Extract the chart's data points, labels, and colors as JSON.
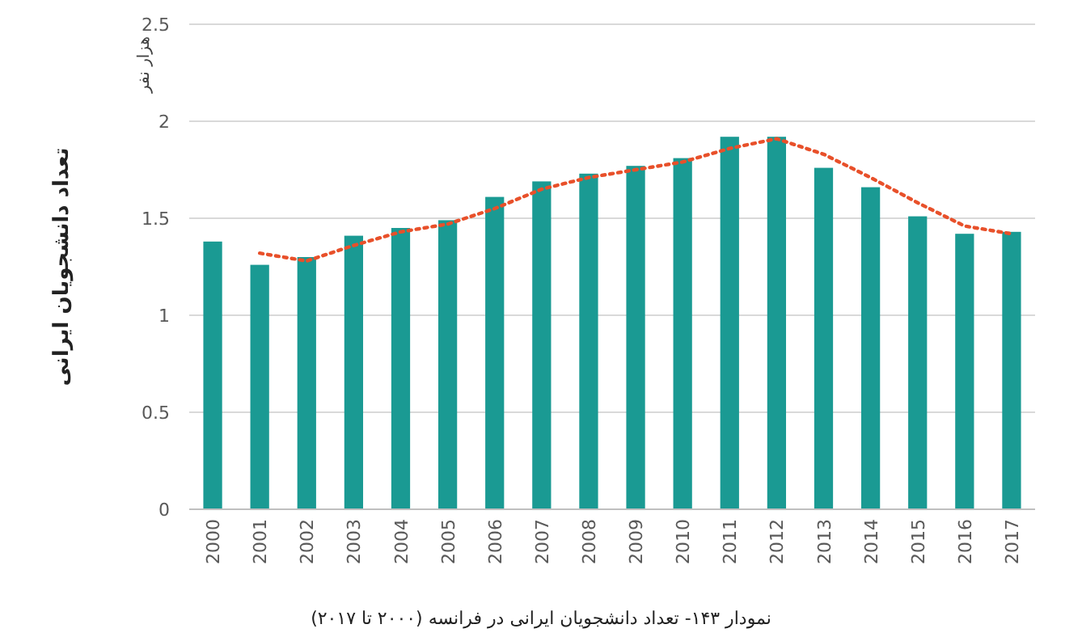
{
  "chart_data": {
    "type": "bar",
    "ylabel": "تعداد دانشجویان ایرانی",
    "annotations": [
      "هزار نفر",
      "نمودار ۱۴۳- تعداد دانشجویان ایرانی در فرانسه (۲۰۰۰ تا ۲۰۱۷)"
    ],
    "categories": [
      "2000",
      "2001",
      "2002",
      "2003",
      "2004",
      "2005",
      "2006",
      "2007",
      "2008",
      "2009",
      "2010",
      "2011",
      "2012",
      "2013",
      "2014",
      "2015",
      "2016",
      "2017"
    ],
    "series": [
      {
        "color": "#1a9a93",
        "values": [
          1.38,
          1.26,
          1.3,
          1.41,
          1.45,
          1.49,
          1.61,
          1.69,
          1.73,
          1.77,
          1.81,
          1.92,
          1.92,
          1.76,
          1.66,
          1.51,
          1.42,
          1.43
        ]
      },
      {
        "type": "line",
        "color": "#e8502a",
        "line_style": "dotted",
        "values": [
          null,
          1.32,
          1.28,
          1.36,
          1.43,
          1.47,
          1.55,
          1.65,
          1.71,
          1.75,
          1.79,
          1.86,
          1.91,
          1.83,
          1.71,
          1.58,
          1.46,
          1.42
        ]
      }
    ],
    "ylim": [
      0,
      2.5
    ],
    "yticks": [
      0,
      0.5,
      1,
      1.5,
      2,
      2.5
    ],
    "grid": "y"
  }
}
